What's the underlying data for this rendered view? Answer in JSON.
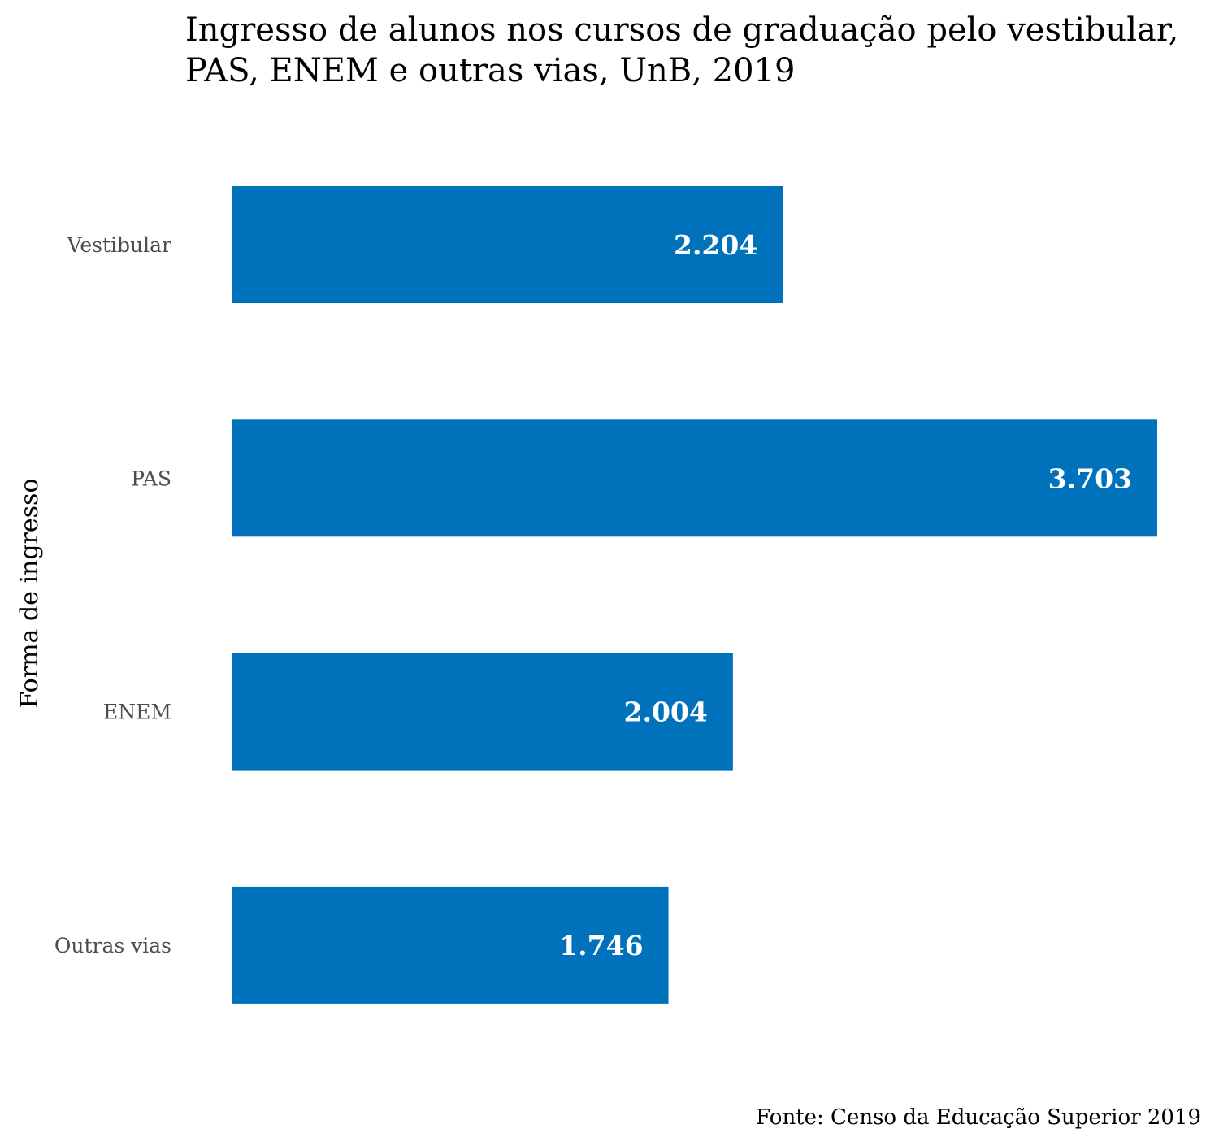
{
  "chart_data": {
    "type": "bar",
    "orientation": "horizontal",
    "title_lines": [
      "Ingresso de alunos nos cursos de graduação pelo vestibular,",
      "PAS, ENEM e outras vias, UnB, 2019"
    ],
    "ylabel": "Forma de ingresso",
    "xlabel": "",
    "caption": "Fonte: Censo da Educação Superior 2019",
    "categories": [
      "Vestibular",
      "PAS",
      "ENEM",
      "Outras vias"
    ],
    "values": [
      2204,
      3703,
      2004,
      1746
    ],
    "value_labels": [
      "2.204",
      "3.703",
      "2.004",
      "1.746"
    ],
    "xlim": [
      0,
      3703
    ],
    "grid": false,
    "bar_color": "#0072BB",
    "value_label_color": "#FFFFFF"
  }
}
